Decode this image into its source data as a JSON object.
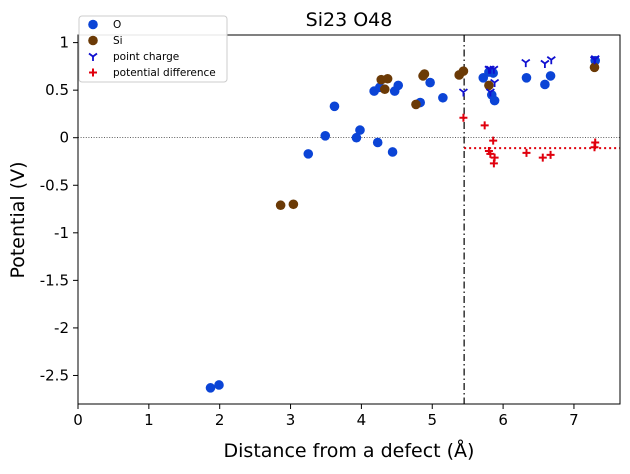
{
  "chart_data": {
    "type": "scatter",
    "title": "Si23 O48",
    "xlabel": "Distance from a defect (Å)",
    "ylabel": "Potential (V)",
    "xlim": [
      0,
      7.65
    ],
    "ylim": [
      -2.8,
      1.08
    ],
    "x_ticks": [
      0,
      1,
      2,
      3,
      4,
      5,
      6,
      7
    ],
    "x_tick_labels": [
      "0",
      "1",
      "2",
      "3",
      "4",
      "5",
      "6",
      "7"
    ],
    "y_ticks": [
      1,
      0.5,
      0,
      -0.5,
      -1,
      -1.5,
      -2,
      -2.5
    ],
    "y_tick_labels": [
      "1",
      "0.5",
      "0",
      "-0.5",
      "-1",
      "-1.5",
      "-2",
      "-2.5"
    ],
    "grid": false,
    "legend_position": "top-left",
    "reference_lines": {
      "zero_line_y": 0,
      "cutoff_x": 5.45,
      "mean_difference_y": -0.11
    },
    "series": [
      {
        "name": "O",
        "marker": "circle",
        "color": "#0b44d6",
        "points": [
          [
            1.87,
            -2.63
          ],
          [
            1.99,
            -2.6
          ],
          [
            3.25,
            -0.17
          ],
          [
            3.49,
            0.02
          ],
          [
            3.62,
            0.33
          ],
          [
            3.93,
            0.0
          ],
          [
            3.98,
            0.08
          ],
          [
            4.18,
            0.49
          ],
          [
            4.23,
            -0.05
          ],
          [
            4.26,
            0.53
          ],
          [
            4.44,
            -0.15
          ],
          [
            4.47,
            0.49
          ],
          [
            4.52,
            0.55
          ],
          [
            4.83,
            0.37
          ],
          [
            4.97,
            0.58
          ],
          [
            5.15,
            0.42
          ],
          [
            5.72,
            0.63
          ],
          [
            5.8,
            0.69
          ],
          [
            5.86,
            0.68
          ],
          [
            5.84,
            0.45
          ],
          [
            5.88,
            0.39
          ],
          [
            6.33,
            0.63
          ],
          [
            6.59,
            0.56
          ],
          [
            6.67,
            0.65
          ],
          [
            7.3,
            0.81
          ]
        ]
      },
      {
        "name": "Si",
        "marker": "circle",
        "color": "#6b3a06",
        "points": [
          [
            2.86,
            -0.71
          ],
          [
            3.04,
            -0.7
          ],
          [
            4.28,
            0.61
          ],
          [
            4.33,
            0.51
          ],
          [
            4.37,
            0.62
          ],
          [
            4.77,
            0.35
          ],
          [
            4.87,
            0.65
          ],
          [
            4.89,
            0.67
          ],
          [
            5.38,
            0.66
          ],
          [
            5.44,
            0.7
          ],
          [
            5.8,
            0.55
          ],
          [
            7.29,
            0.74
          ]
        ]
      },
      {
        "name": "point charge",
        "marker": "tri_down",
        "color": "#1010d0",
        "points": [
          [
            5.44,
            0.48
          ],
          [
            5.8,
            0.72
          ],
          [
            5.82,
            0.72
          ],
          [
            5.87,
            0.72
          ],
          [
            5.88,
            0.58
          ],
          [
            5.82,
            0.48
          ],
          [
            6.32,
            0.79
          ],
          [
            6.59,
            0.78
          ],
          [
            6.68,
            0.82
          ],
          [
            7.3,
            0.83
          ],
          [
            7.29,
            0.82
          ]
        ]
      },
      {
        "name": "potential difference",
        "marker": "plus",
        "color": "#e0000d",
        "points": [
          [
            5.44,
            0.21
          ],
          [
            5.74,
            0.13
          ],
          [
            5.8,
            -0.14
          ],
          [
            5.82,
            -0.17
          ],
          [
            5.86,
            -0.03
          ],
          [
            5.87,
            -0.27
          ],
          [
            5.88,
            -0.21
          ],
          [
            6.33,
            -0.16
          ],
          [
            6.56,
            -0.21
          ],
          [
            6.67,
            -0.18
          ],
          [
            7.3,
            -0.05
          ],
          [
            7.29,
            -0.1
          ]
        ]
      }
    ]
  }
}
